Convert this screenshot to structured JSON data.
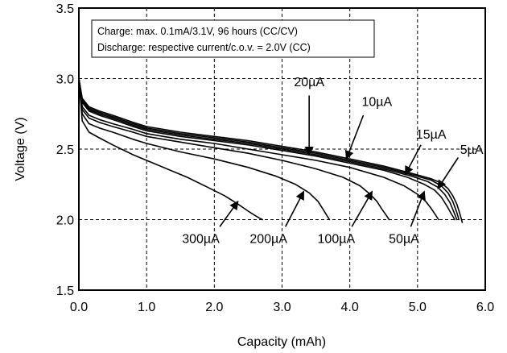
{
  "chart_data": {
    "type": "line",
    "xlabel": "Capacity (mAh)",
    "ylabel": "Voltage (V)",
    "xlim": [
      0.0,
      6.0
    ],
    "ylim": [
      1.5,
      3.5
    ],
    "x_ticks": [
      "0.0",
      "1.0",
      "2.0",
      "3.0",
      "4.0",
      "5.0",
      "6.0"
    ],
    "y_ticks": [
      "1.5",
      "2.0",
      "2.5",
      "3.0",
      "3.5"
    ],
    "grid": true,
    "legend": {
      "placement": "top-left",
      "lines": [
        "Charge: max. 0.1mA/3.1V, 96 hours (CC/CV)",
        "Discharge: respective current/c.o.v. = 2.0V (CC)"
      ]
    },
    "line_color": "#000000",
    "series": [
      {
        "name": "5µA",
        "x": [
          0.0,
          0.05,
          0.15,
          0.3,
          0.5,
          0.8,
          1.0,
          1.5,
          2.0,
          2.5,
          3.0,
          3.5,
          4.0,
          4.5,
          4.9,
          5.2,
          5.35,
          5.45,
          5.52,
          5.58,
          5.62,
          5.65,
          5.66
        ],
        "y": [
          3.0,
          2.86,
          2.8,
          2.77,
          2.74,
          2.69,
          2.66,
          2.62,
          2.59,
          2.56,
          2.52,
          2.48,
          2.43,
          2.38,
          2.33,
          2.29,
          2.26,
          2.22,
          2.17,
          2.11,
          2.05,
          2.0,
          1.98
        ]
      },
      {
        "name": "10µA",
        "x": [
          0.0,
          0.05,
          0.15,
          0.3,
          0.5,
          0.8,
          1.0,
          1.5,
          2.0,
          2.5,
          3.0,
          3.5,
          4.0,
          4.5,
          4.9,
          5.2,
          5.35,
          5.45,
          5.52,
          5.58,
          5.61
        ],
        "y": [
          3.0,
          2.85,
          2.79,
          2.76,
          2.73,
          2.68,
          2.65,
          2.61,
          2.58,
          2.55,
          2.51,
          2.47,
          2.42,
          2.37,
          2.32,
          2.28,
          2.24,
          2.19,
          2.13,
          2.05,
          2.0
        ]
      },
      {
        "name": "15µA",
        "x": [
          0.0,
          0.05,
          0.15,
          0.3,
          0.5,
          0.8,
          1.0,
          1.5,
          2.0,
          2.5,
          3.0,
          3.5,
          4.0,
          4.5,
          4.9,
          5.15,
          5.3,
          5.4,
          5.48,
          5.54,
          5.58
        ],
        "y": [
          3.0,
          2.84,
          2.78,
          2.75,
          2.72,
          2.67,
          2.64,
          2.6,
          2.57,
          2.54,
          2.5,
          2.46,
          2.41,
          2.36,
          2.31,
          2.27,
          2.23,
          2.18,
          2.12,
          2.05,
          2.0
        ]
      },
      {
        "name": "20µA",
        "x": [
          0.0,
          0.05,
          0.15,
          0.3,
          0.5,
          0.8,
          1.0,
          1.5,
          2.0,
          2.5,
          3.0,
          3.5,
          4.0,
          4.5,
          4.85,
          5.1,
          5.25,
          5.35,
          5.43,
          5.5,
          5.55
        ],
        "y": [
          3.0,
          2.83,
          2.77,
          2.74,
          2.71,
          2.66,
          2.63,
          2.59,
          2.56,
          2.53,
          2.49,
          2.45,
          2.4,
          2.35,
          2.3,
          2.25,
          2.21,
          2.16,
          2.1,
          2.04,
          2.0
        ]
      },
      {
        "name": "50µA",
        "x": [
          0.0,
          0.05,
          0.15,
          0.3,
          0.5,
          0.8,
          1.0,
          1.5,
          2.0,
          2.5,
          3.0,
          3.5,
          4.0,
          4.5,
          4.8,
          5.0,
          5.12,
          5.2,
          5.27,
          5.31
        ],
        "y": [
          3.0,
          2.8,
          2.74,
          2.71,
          2.68,
          2.64,
          2.61,
          2.57,
          2.54,
          2.5,
          2.46,
          2.42,
          2.37,
          2.3,
          2.24,
          2.18,
          2.13,
          2.08,
          2.03,
          2.0
        ]
      },
      {
        "name": "100µA",
        "x": [
          0.0,
          0.05,
          0.15,
          0.3,
          0.5,
          0.8,
          1.0,
          1.5,
          2.0,
          2.5,
          3.0,
          3.5,
          3.9,
          4.15,
          4.3,
          4.4,
          4.48,
          4.54,
          4.58
        ],
        "y": [
          3.0,
          2.78,
          2.72,
          2.69,
          2.66,
          2.62,
          2.59,
          2.55,
          2.51,
          2.47,
          2.42,
          2.36,
          2.3,
          2.24,
          2.18,
          2.13,
          2.07,
          2.03,
          2.0
        ]
      },
      {
        "name": "200µA",
        "x": [
          0.0,
          0.05,
          0.15,
          0.3,
          0.5,
          0.8,
          1.0,
          1.5,
          2.0,
          2.5,
          2.9,
          3.2,
          3.4,
          3.53,
          3.61,
          3.66,
          3.7
        ],
        "y": [
          3.0,
          2.75,
          2.68,
          2.65,
          2.62,
          2.57,
          2.54,
          2.48,
          2.43,
          2.37,
          2.31,
          2.25,
          2.19,
          2.13,
          2.07,
          2.03,
          2.0
        ]
      },
      {
        "name": "300µA",
        "x": [
          0.0,
          0.05,
          0.15,
          0.3,
          0.5,
          0.8,
          1.0,
          1.3,
          1.6,
          1.9,
          2.15,
          2.35,
          2.5,
          2.6,
          2.67,
          2.71
        ],
        "y": [
          3.0,
          2.7,
          2.62,
          2.58,
          2.53,
          2.46,
          2.42,
          2.36,
          2.3,
          2.23,
          2.17,
          2.11,
          2.06,
          2.03,
          2.01,
          2.0
        ]
      }
    ],
    "annotations": [
      {
        "text": "5µA",
        "value_x": 5.8,
        "value_y": 2.5,
        "arrow_from": [
          5.6,
          2.44
        ],
        "arrow_to": [
          5.3,
          2.22
        ]
      },
      {
        "text": "15µA",
        "value_x": 5.2,
        "value_y": 2.61,
        "arrow_from": [
          5.05,
          2.53
        ],
        "arrow_to": [
          4.82,
          2.32
        ]
      },
      {
        "text": "10µA",
        "value_x": 4.4,
        "value_y": 2.84,
        "arrow_from": [
          4.2,
          2.74
        ],
        "arrow_to": [
          3.95,
          2.43
        ]
      },
      {
        "text": "20µA",
        "value_x": 3.4,
        "value_y": 2.98,
        "arrow_from": [
          3.4,
          2.88
        ],
        "arrow_to": [
          3.4,
          2.46
        ]
      },
      {
        "text": "300µA",
        "value_x": 1.8,
        "value_y": 1.87,
        "arrow_from": [
          2.08,
          1.95
        ],
        "arrow_to": [
          2.35,
          2.13
        ]
      },
      {
        "text": "200µA",
        "value_x": 2.8,
        "value_y": 1.87,
        "arrow_from": [
          3.05,
          1.95
        ],
        "arrow_to": [
          3.32,
          2.2
        ]
      },
      {
        "text": "100µA",
        "value_x": 3.8,
        "value_y": 1.87,
        "arrow_from": [
          4.03,
          1.95
        ],
        "arrow_to": [
          4.33,
          2.2
        ]
      },
      {
        "text": "50µA",
        "value_x": 4.8,
        "value_y": 1.87,
        "arrow_from": [
          4.9,
          1.95
        ],
        "arrow_to": [
          5.1,
          2.2
        ]
      }
    ]
  }
}
